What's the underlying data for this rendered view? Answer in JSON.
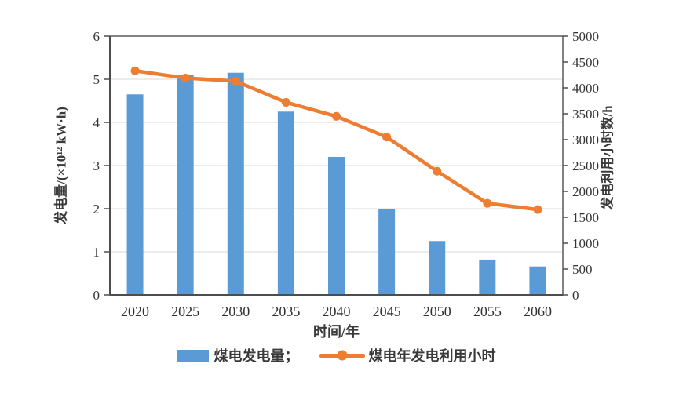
{
  "figure": {
    "background": "#ffffff"
  },
  "legend": {
    "bar_label": "煤电发电量；",
    "line_label": "煤电年发电利用小时"
  },
  "chart_data": {
    "type": "combo-bar-line",
    "categories": [
      "2020",
      "2025",
      "2030",
      "2035",
      "2040",
      "2045",
      "2050",
      "2055",
      "2060"
    ],
    "series": [
      {
        "name": "煤电发电量",
        "type": "bar",
        "axis": "left",
        "color": "#5b9bd5",
        "values": [
          4.65,
          5.1,
          5.15,
          4.25,
          3.2,
          2.0,
          1.25,
          0.82,
          0.66
        ]
      },
      {
        "name": "煤电年发电利用小时",
        "type": "line",
        "axis": "right",
        "color": "#ed7d31",
        "values": [
          4330,
          4190,
          4130,
          3720,
          3450,
          3050,
          2390,
          1770,
          1650
        ]
      }
    ],
    "left_axis": {
      "label": "发电量/(×10¹² kW·h)",
      "min": 0,
      "max": 6,
      "step": 1
    },
    "right_axis": {
      "label": "发电利用小时数/h",
      "min": 0,
      "max": 5000,
      "step": 500
    },
    "x_axis": {
      "label": "时间/年"
    },
    "grid": {
      "horizontal": true,
      "color": "#d9d9d9"
    },
    "axis_color": "#4d4d4d",
    "text_color": "#333333",
    "legend_position": "bottom"
  }
}
